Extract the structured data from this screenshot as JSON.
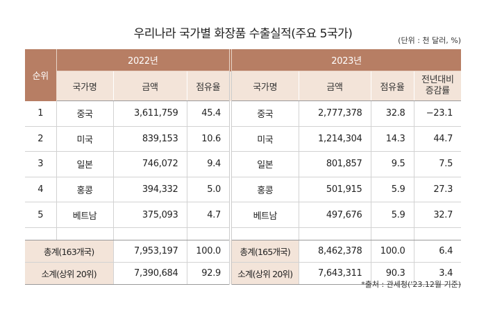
{
  "title": "우리나라 국가별 화장품 수출실적(주요 5국가)",
  "unit": "(단위 : 천 달러, %)",
  "source": "*출처 : 관세청('23.12월 기준)",
  "headers": {
    "rank": "순위",
    "year2022": "2022년",
    "year2023": "2023년",
    "country": "국가명",
    "amount": "금액",
    "share": "점유율",
    "yoy_line1": "전년대비",
    "yoy_line2": "증감률"
  },
  "rows": [
    {
      "rank": "1",
      "c22": "중국",
      "a22": "3,611,759",
      "s22": "45.4",
      "c23": "중국",
      "a23": "2,777,378",
      "s23": "32.8",
      "yoy": "−23.1"
    },
    {
      "rank": "2",
      "c22": "미국",
      "a22": "839,153",
      "s22": "10.6",
      "c23": "미국",
      "a23": "1,214,304",
      "s23": "14.3",
      "yoy": "44.7"
    },
    {
      "rank": "3",
      "c22": "일본",
      "a22": "746,072",
      "s22": "9.4",
      "c23": "일본",
      "a23": "801,857",
      "s23": "9.5",
      "yoy": "7.5"
    },
    {
      "rank": "4",
      "c22": "홍콩",
      "a22": "394,332",
      "s22": "5.0",
      "c23": "홍콩",
      "a23": "501,915",
      "s23": "5.9",
      "yoy": "27.3"
    },
    {
      "rank": "5",
      "c22": "베트남",
      "a22": "375,093",
      "s22": "4.7",
      "c23": "베트남",
      "a23": "497,676",
      "s23": "5.9",
      "yoy": "32.7"
    }
  ],
  "totals": [
    {
      "l22": "총계(163개국)",
      "a22": "7,953,197",
      "s22": "100.0",
      "l23": "총계(165개국)",
      "a23": "8,462,378",
      "s23": "100.0",
      "yoy": "6.4"
    },
    {
      "l22": "소계(상위 20위)",
      "a22": "7,390,684",
      "s22": "92.9",
      "l23": "소계(상위 20위)",
      "a23": "7,643,311",
      "s23": "90.3",
      "yoy": "3.4"
    }
  ]
}
